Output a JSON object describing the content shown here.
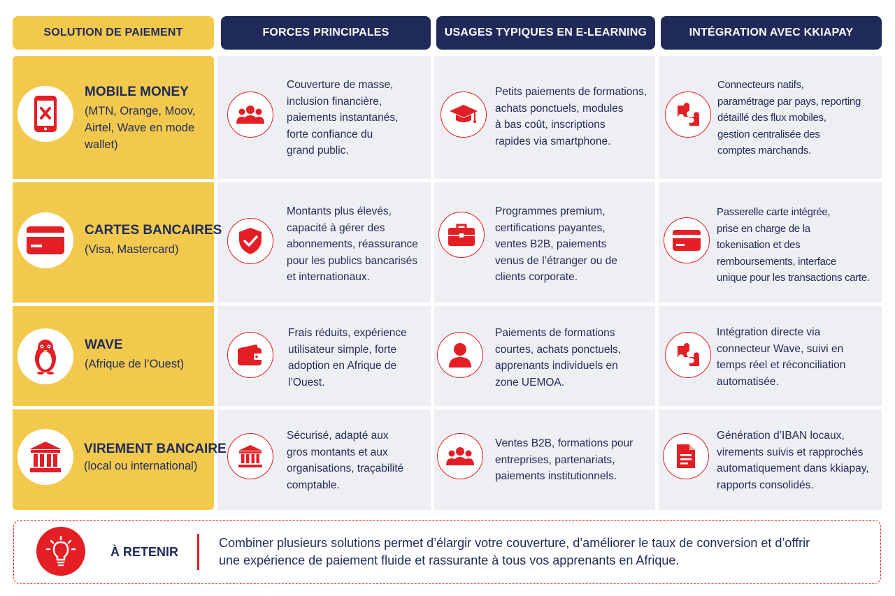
{
  "headers": [
    "SOLUTION DE PAIEMENT",
    "FORCES PRINCIPALES",
    "USAGES TYPIQUES EN E-LEARNING",
    "INTÉGRATION AVEC KKIAPAY"
  ],
  "rows": [
    {
      "title": "MOBILE MONEY",
      "subtitle": "(MTN, Orange, Moov,\nAirtel, Wave en mode\nwallet)",
      "icon": "smartphone-icon",
      "forces_icon": "users-icon",
      "forces": "Couverture de masse,\ninclusion financière,\npaiements instantanés,\nforte confiance du\ngrand public.",
      "usages_icon": "graduation-cap-icon",
      "usages": "Petits paiements de formations,\nachats ponctuels, modules\nà bas coût, inscriptions\nrapides via smartphone.",
      "integration_icon": "puzzle-icon",
      "integration": "Connecteurs natifs,\nparamétrage par pays, reporting\ndétaillé des flux mobiles,\ngestion centralisée des\ncomptes marchands."
    },
    {
      "title": "CARTES BANCAIRES",
      "subtitle": "(Visa, Mastercard)",
      "icon": "credit-card-icon",
      "forces_icon": "shield-check-icon",
      "forces": "Montants plus élevés,\ncapacité à gérer des\nabonnements, réassurance\npour les publics bancarisés\net internationaux.",
      "usages_icon": "briefcase-icon",
      "usages": "Programmes premium,\ncertifications payantes,\nventes B2B, paiements\nvenus de l’étranger ou de\nclients corporate.",
      "integration_icon": "credit-card-icon",
      "integration": "Passerelle carte intégrée,\nprise en charge de la\ntokenisation et des\nremboursements, interface\nunique pour les transactions carte."
    },
    {
      "title": "WAVE",
      "subtitle": "(Afrique de l’Ouest)",
      "icon": "penguin-icon",
      "forces_icon": "wallet-icon",
      "forces": "Frais réduits, expérience\nutilisateur simple, forte\nadoption en Afrique de\nl’Ouest.",
      "usages_icon": "user-icon",
      "usages": "Paiements de formations\ncourtes, achats ponctuels,\napprenants individuels en\nzone UEMOA.",
      "integration_icon": "puzzle-icon",
      "integration": "Intégration directe via\nconnecteur Wave, suivi en\ntemps réel et réconciliation\nautomatisée."
    },
    {
      "title": "VIREMENT BANCAIRE",
      "subtitle": "(local ou international)",
      "icon": "bank-icon",
      "forces_icon": "bank-icon",
      "forces": "Sécurisé, adapté aux\ngros montants et aux\norganisations, traçabilité\ncomptable.",
      "usages_icon": "users-icon",
      "usages": "Ventes B2B, formations pour\nentreprises, partenariats,\npaiements institutionnels.",
      "integration_icon": "document-icon",
      "integration": "Génération d’IBAN locaux,\nvirements suivis et rapprochés\nautomatiquement dans kkiapay,\nrapports consolidés."
    }
  ],
  "retain": {
    "label": "À RETENIR",
    "icon": "lightbulb-icon",
    "text": "Combiner plusieurs solutions permet d’élargir votre couverture, d’améliorer le taux de conversion et d’offrir\nune expérience de paiement fluide et rassurante à tous vos apprenants en Afrique."
  },
  "colors": {
    "yellow": "#f2c94c",
    "navy": "#1f2a5a",
    "red": "#e31e24",
    "cell_gray": "#eeeff3"
  }
}
